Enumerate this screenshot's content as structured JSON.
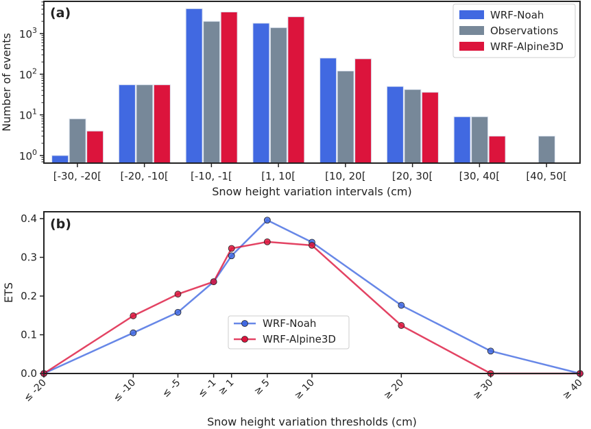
{
  "chart_data": [
    {
      "type": "bar",
      "panel_label": "(a)",
      "xlabel": "Snow height variation intervals (cm)",
      "ylabel": "Number of events",
      "yscale": "log",
      "ylim": [
        0.65,
        6200
      ],
      "yticks": [
        {
          "value": 1,
          "base": "10",
          "exp": "0"
        },
        {
          "value": 10,
          "base": "10",
          "exp": "1"
        },
        {
          "value": 100,
          "base": "10",
          "exp": "2"
        },
        {
          "value": 1000,
          "base": "10",
          "exp": "3"
        }
      ],
      "categories": [
        "[-30, -20[",
        "[-20, -10[",
        "[-10, -1[",
        "[1, 10[",
        "[10, 20[",
        "[20, 30[",
        "[30, 40[",
        "[40, 50["
      ],
      "series": [
        {
          "name": "WRF-Noah",
          "color": "#4169e1",
          "values": [
            1,
            55,
            4100,
            1800,
            250,
            50,
            9,
            null
          ]
        },
        {
          "name": "Observations",
          "color": "#778899",
          "values": [
            8,
            55,
            2000,
            1400,
            120,
            42,
            9,
            3
          ]
        },
        {
          "name": "WRF-Alpine3D",
          "color": "#dc143c",
          "values": [
            4,
            55,
            3400,
            2600,
            240,
            36,
            3,
            null
          ]
        }
      ],
      "legend": "top-right",
      "grid": false
    },
    {
      "type": "line",
      "panel_label": "(b)",
      "xlabel": "Snow height variation thresholds (cm)",
      "ylabel": "ETS",
      "xlim": [
        -20,
        40
      ],
      "ylim": [
        0,
        0.41
      ],
      "yticks": [
        "0.0",
        "0.1",
        "0.2",
        "0.3",
        "0.4"
      ],
      "x": [
        -20,
        -10,
        -5,
        -1,
        1,
        5,
        10,
        20,
        30,
        40
      ],
      "xtick_labels": [
        "≤ -20",
        "≤ -10",
        "≤ -5",
        "≤ -1",
        "≥ 1",
        "≥ 5",
        "≥ 10",
        "≥ 20",
        "≥ 30",
        "≥ 40"
      ],
      "series": [
        {
          "name": "WRF-Noah",
          "color": "#4169e1",
          "values": [
            0,
            0.105,
            0.158,
            0.237,
            0.304,
            0.396,
            0.339,
            0.176,
            0.058,
            0
          ]
        },
        {
          "name": "WRF-Alpine3D",
          "color": "#dc143c",
          "values": [
            0,
            0.149,
            0.205,
            0.237,
            0.323,
            0.34,
            0.331,
            0.124,
            0,
            0
          ]
        }
      ],
      "legend": "center",
      "grid": false
    }
  ]
}
